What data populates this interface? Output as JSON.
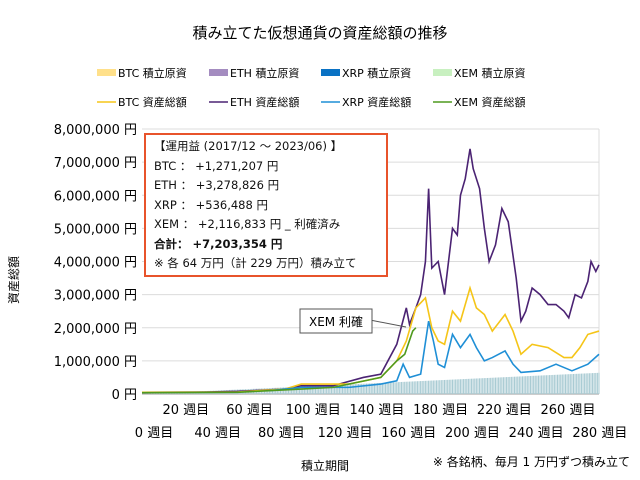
{
  "chart_data": {
    "type": "line",
    "title": "積み立てた仮想通貨の資産総額の推移",
    "xlabel": "積立期間",
    "ylabel": "資産総額",
    "ylim": [
      0,
      8000000
    ],
    "xlim": [
      0,
      287
    ],
    "grid": true,
    "legend_placement": "top",
    "y_ticks": [
      "0 円",
      "1,000,000 円",
      "2,000,000 円",
      "3,000,000 円",
      "4,000,000 円",
      "5,000,000 円",
      "6,000,000 円",
      "7,000,000 円",
      "8,000,000 円"
    ],
    "x_ticks_upper": [
      "20 週目",
      "60 週目",
      "100 週目",
      "140 週目",
      "180 週目",
      "220 週目",
      "260 週目"
    ],
    "x_ticks_lower": [
      "0 週目",
      "40 週目",
      "80 週目",
      "120 週目",
      "160 週目",
      "200 週目",
      "240 週目",
      "280 週目"
    ],
    "legend": [
      {
        "label": "BTC  積立原資",
        "color": "#ffe08a",
        "kind": "bar"
      },
      {
        "label": "ETH  積立原資",
        "color": "#a48cc0",
        "kind": "bar"
      },
      {
        "label": "XRP  積立原資",
        "color": "#0a72c4",
        "kind": "bar"
      },
      {
        "label": "XEM  積立原資",
        "color": "#c8f0c0",
        "kind": "bar"
      },
      {
        "label": "BTC  資産総額",
        "color": "#f5c518",
        "kind": "line"
      },
      {
        "label": "ETH  資産総額",
        "color": "#4b2373",
        "kind": "line"
      },
      {
        "label": "XRP  資産総額",
        "color": "#1f8fd6",
        "kind": "line"
      },
      {
        "label": "XEM  資産総額",
        "color": "#4f9a1e",
        "kind": "line"
      }
    ],
    "cost_basis_final_per_coin": 640000,
    "cost_bar_color": "#a9cbd3",
    "series": [
      {
        "name": "ETH  資産総額",
        "color": "#4b2373",
        "points": [
          [
            0,
            50000
          ],
          [
            40,
            60000
          ],
          [
            60,
            80000
          ],
          [
            90,
            150000
          ],
          [
            100,
            250000
          ],
          [
            120,
            250000
          ],
          [
            139,
            500000
          ],
          [
            150,
            600000
          ],
          [
            160,
            1500000
          ],
          [
            166,
            2600000
          ],
          [
            168,
            2100000
          ],
          [
            172,
            2600000
          ],
          [
            175,
            3000000
          ],
          [
            178,
            4000000
          ],
          [
            180,
            6200000
          ],
          [
            182,
            3800000
          ],
          [
            186,
            4000000
          ],
          [
            190,
            3000000
          ],
          [
            195,
            5000000
          ],
          [
            198,
            4800000
          ],
          [
            200,
            6000000
          ],
          [
            203,
            6500000
          ],
          [
            206,
            7400000
          ],
          [
            208,
            6800000
          ],
          [
            212,
            6200000
          ],
          [
            215,
            5000000
          ],
          [
            218,
            4000000
          ],
          [
            222,
            4500000
          ],
          [
            226,
            5600000
          ],
          [
            230,
            5200000
          ],
          [
            235,
            3500000
          ],
          [
            238,
            2200000
          ],
          [
            241,
            2500000
          ],
          [
            245,
            3200000
          ],
          [
            250,
            3000000
          ],
          [
            255,
            2700000
          ],
          [
            260,
            2700000
          ],
          [
            265,
            2500000
          ],
          [
            268,
            2300000
          ],
          [
            272,
            3000000
          ],
          [
            276,
            2900000
          ],
          [
            280,
            3400000
          ],
          [
            282,
            4000000
          ],
          [
            285,
            3700000
          ],
          [
            287,
            3900000
          ]
        ]
      },
      {
        "name": "BTC  資産総額",
        "color": "#f5c518",
        "points": [
          [
            0,
            50000
          ],
          [
            60,
            60000
          ],
          [
            90,
            150000
          ],
          [
            100,
            300000
          ],
          [
            130,
            300000
          ],
          [
            150,
            500000
          ],
          [
            160,
            1000000
          ],
          [
            166,
            1600000
          ],
          [
            172,
            2600000
          ],
          [
            178,
            2900000
          ],
          [
            182,
            2000000
          ],
          [
            186,
            1600000
          ],
          [
            190,
            1500000
          ],
          [
            195,
            2500000
          ],
          [
            200,
            2200000
          ],
          [
            206,
            3200000
          ],
          [
            210,
            2600000
          ],
          [
            215,
            2400000
          ],
          [
            220,
            1900000
          ],
          [
            228,
            2400000
          ],
          [
            233,
            1900000
          ],
          [
            238,
            1200000
          ],
          [
            245,
            1500000
          ],
          [
            255,
            1400000
          ],
          [
            265,
            1100000
          ],
          [
            270,
            1100000
          ],
          [
            275,
            1400000
          ],
          [
            280,
            1800000
          ],
          [
            287,
            1900000
          ]
        ]
      },
      {
        "name": "XRP  資産総額",
        "color": "#1f8fd6",
        "points": [
          [
            80,
            100000
          ],
          [
            100,
            200000
          ],
          [
            130,
            200000
          ],
          [
            150,
            300000
          ],
          [
            160,
            400000
          ],
          [
            164,
            900000
          ],
          [
            168,
            500000
          ],
          [
            175,
            600000
          ],
          [
            180,
            2200000
          ],
          [
            183,
            1600000
          ],
          [
            186,
            900000
          ],
          [
            190,
            800000
          ],
          [
            195,
            1800000
          ],
          [
            200,
            1400000
          ],
          [
            206,
            1800000
          ],
          [
            210,
            1400000
          ],
          [
            215,
            1000000
          ],
          [
            220,
            1100000
          ],
          [
            228,
            1300000
          ],
          [
            233,
            900000
          ],
          [
            238,
            650000
          ],
          [
            250,
            700000
          ],
          [
            260,
            900000
          ],
          [
            270,
            700000
          ],
          [
            280,
            900000
          ],
          [
            287,
            1200000
          ]
        ]
      },
      {
        "name": "XEM  資産総額",
        "color": "#4f9a1e",
        "points": [
          [
            0,
            40000
          ],
          [
            60,
            50000
          ],
          [
            100,
            150000
          ],
          [
            120,
            200000
          ],
          [
            140,
            400000
          ],
          [
            150,
            500000
          ],
          [
            160,
            1000000
          ],
          [
            165,
            1200000
          ],
          [
            170,
            1900000
          ],
          [
            172,
            2000000
          ]
        ]
      }
    ]
  },
  "annotation": {
    "header": "【運用益 (2017/12 ～ 2023/06) 】",
    "lines": [
      "BTC ： +1,271,207 円",
      "ETH ： +3,278,826 円",
      "XRP ： +536,488 円",
      "XEM ： +2,116,833 円 _ 利確済み"
    ],
    "total": "合計： +7,203,354 円",
    "note": "※ 各 64 万円（計 229 万円）積み立て"
  },
  "callout": {
    "label": "XEM 利確",
    "week": 172,
    "value": 2000000
  },
  "footnote": "※ 各銘柄、毎月 1 万円ずつ積み立て"
}
